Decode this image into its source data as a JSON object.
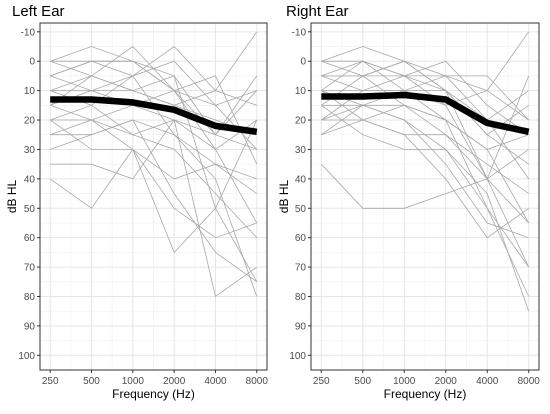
{
  "chart_data": [
    {
      "type": "line",
      "title": "Left Ear",
      "xlabel": "Frequency (Hz)",
      "ylabel": "dB HL",
      "x_scale": "log2",
      "y_reversed": true,
      "x": [
        250,
        500,
        1000,
        2000,
        4000,
        8000
      ],
      "x_tick_labels": [
        "250",
        "500",
        "1000",
        "2000",
        "4000",
        "8000"
      ],
      "ylim": [
        -13,
        105
      ],
      "y_ticks": [
        -10,
        0,
        10,
        20,
        30,
        40,
        50,
        60,
        70,
        80,
        90,
        100
      ],
      "grid": true,
      "series": [
        {
          "role": "mean",
          "values": [
            13,
            13,
            14,
            16.5,
            22,
            24
          ]
        },
        {
          "role": "individual",
          "values": [
            0,
            -5,
            0,
            10,
            15,
            30
          ]
        },
        {
          "role": "individual",
          "values": [
            5,
            10,
            5,
            -5,
            10,
            -10
          ]
        },
        {
          "role": "individual",
          "values": [
            10,
            5,
            -5,
            10,
            25,
            10
          ]
        },
        {
          "role": "individual",
          "values": [
            10,
            10,
            10,
            15,
            10,
            15
          ]
        },
        {
          "role": "individual",
          "values": [
            15,
            20,
            15,
            10,
            5,
            35
          ]
        },
        {
          "role": "individual",
          "values": [
            20,
            15,
            25,
            20,
            30,
            55
          ]
        },
        {
          "role": "individual",
          "values": [
            25,
            20,
            30,
            40,
            35,
            40
          ]
        },
        {
          "role": "individual",
          "values": [
            30,
            25,
            20,
            45,
            65,
            75
          ]
        },
        {
          "role": "individual",
          "values": [
            40,
            50,
            30,
            65,
            50,
            75
          ]
        },
        {
          "role": "individual",
          "values": [
            35,
            35,
            40,
            20,
            80,
            70
          ]
        },
        {
          "role": "individual",
          "values": [
            5,
            0,
            0,
            5,
            50,
            20
          ]
        },
        {
          "role": "individual",
          "values": [
            15,
            5,
            10,
            15,
            20,
            25
          ]
        },
        {
          "role": "individual",
          "values": [
            20,
            30,
            30,
            50,
            60,
            55
          ]
        },
        {
          "role": "individual",
          "values": [
            0,
            5,
            10,
            5,
            25,
            5
          ]
        },
        {
          "role": "individual",
          "values": [
            10,
            15,
            5,
            25,
            40,
            80
          ]
        },
        {
          "role": "individual",
          "values": [
            5,
            0,
            5,
            0,
            15,
            10
          ]
        },
        {
          "role": "individual",
          "values": [
            20,
            20,
            25,
            30,
            45,
            60
          ]
        },
        {
          "role": "individual",
          "values": [
            15,
            10,
            15,
            20,
            25,
            30
          ]
        },
        {
          "role": "individual",
          "values": [
            0,
            0,
            0,
            10,
            30,
            20
          ]
        },
        {
          "role": "individual",
          "values": [
            25,
            25,
            20,
            25,
            35,
            45
          ]
        }
      ]
    },
    {
      "type": "line",
      "title": "Right Ear",
      "xlabel": "Frequency (Hz)",
      "ylabel": "dB HL",
      "x_scale": "log2",
      "y_reversed": true,
      "x": [
        250,
        500,
        1000,
        2000,
        4000,
        8000
      ],
      "x_tick_labels": [
        "250",
        "500",
        "1000",
        "2000",
        "4000",
        "8000"
      ],
      "ylim": [
        -13,
        105
      ],
      "y_ticks": [
        -10,
        0,
        10,
        20,
        30,
        40,
        50,
        60,
        70,
        80,
        90,
        100
      ],
      "grid": true,
      "series": [
        {
          "role": "mean",
          "values": [
            12,
            12,
            11.5,
            13,
            21,
            24
          ]
        },
        {
          "role": "individual",
          "values": [
            10,
            0,
            5,
            15,
            10,
            -10
          ]
        },
        {
          "role": "individual",
          "values": [
            5,
            5,
            0,
            10,
            40,
            5
          ]
        },
        {
          "role": "individual",
          "values": [
            15,
            15,
            15,
            20,
            30,
            55
          ]
        },
        {
          "role": "individual",
          "values": [
            20,
            10,
            10,
            15,
            40,
            30
          ]
        },
        {
          "role": "individual",
          "values": [
            10,
            20,
            15,
            20,
            50,
            80
          ]
        },
        {
          "role": "individual",
          "values": [
            35,
            50,
            50,
            45,
            40,
            55
          ]
        },
        {
          "role": "individual",
          "values": [
            0,
            5,
            0,
            5,
            20,
            10
          ]
        },
        {
          "role": "individual",
          "values": [
            5,
            0,
            10,
            5,
            5,
            20
          ]
        },
        {
          "role": "individual",
          "values": [
            25,
            15,
            20,
            30,
            45,
            85
          ]
        },
        {
          "role": "individual",
          "values": [
            15,
            25,
            30,
            30,
            50,
            70
          ]
        },
        {
          "role": "individual",
          "values": [
            20,
            20,
            25,
            25,
            35,
            45
          ]
        },
        {
          "role": "individual",
          "values": [
            10,
            10,
            5,
            0,
            15,
            25
          ]
        },
        {
          "role": "individual",
          "values": [
            5,
            10,
            10,
            10,
            25,
            15
          ]
        },
        {
          "role": "individual",
          "values": [
            0,
            -5,
            0,
            10,
            25,
            35
          ]
        },
        {
          "role": "individual",
          "values": [
            15,
            5,
            15,
            25,
            40,
            70
          ]
        },
        {
          "role": "individual",
          "values": [
            10,
            15,
            10,
            20,
            30,
            25
          ]
        },
        {
          "role": "individual",
          "values": [
            5,
            5,
            5,
            10,
            20,
            40
          ]
        },
        {
          "role": "individual",
          "values": [
            20,
            15,
            20,
            35,
            55,
            60
          ]
        },
        {
          "role": "individual",
          "values": [
            0,
            0,
            5,
            5,
            10,
            20
          ]
        },
        {
          "role": "individual",
          "values": [
            25,
            20,
            25,
            40,
            60,
            50
          ]
        }
      ]
    }
  ]
}
